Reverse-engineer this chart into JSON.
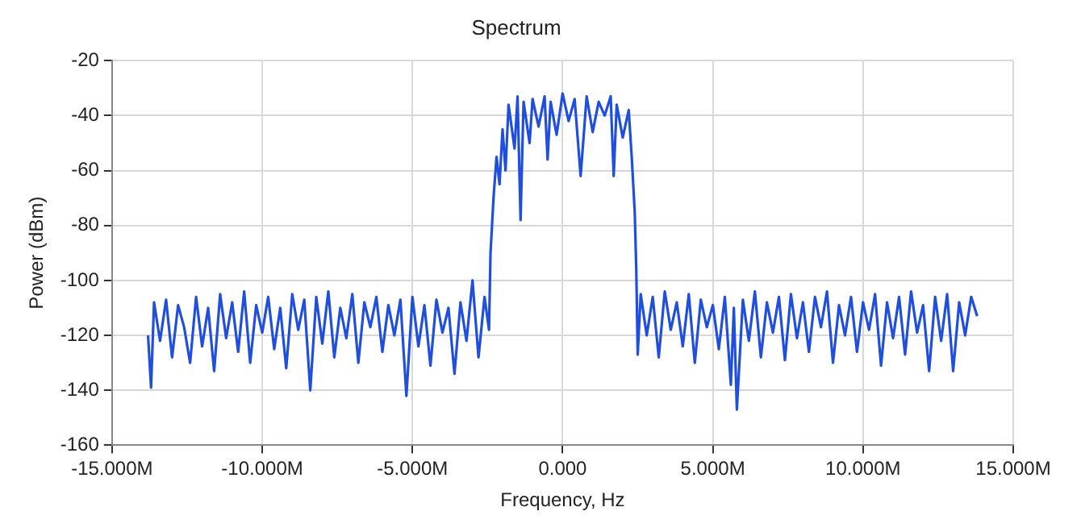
{
  "chart_data": {
    "type": "line",
    "title": "Spectrum",
    "xlabel": "Frequency, Hz",
    "ylabel": "Power (dBm)",
    "xlim": [
      -15000000,
      15000000
    ],
    "xticks": [
      {
        "value": -15000000,
        "label": "-15.000M"
      },
      {
        "value": -10000000,
        "label": "-10.000M"
      },
      {
        "value": -5000000,
        "label": "-5.000M"
      },
      {
        "value": 0,
        "label": "0.000"
      },
      {
        "value": 5000000,
        "label": "5.000M"
      },
      {
        "value": 10000000,
        "label": "10.000M"
      },
      {
        "value": 15000000,
        "label": "15.000M"
      }
    ],
    "ylim": [
      -160,
      -20
    ],
    "yticks": [
      -160,
      -140,
      -120,
      -100,
      -80,
      -60,
      -40,
      -20
    ],
    "grid": true,
    "legend": false,
    "marker": "none",
    "line_style": "solid",
    "series": [
      {
        "color": "#1f4fdc",
        "x": [
          -13800000,
          -13700000,
          -13600000,
          -13400000,
          -13200000,
          -13000000,
          -12800000,
          -12600000,
          -12400000,
          -12200000,
          -12000000,
          -11800000,
          -11600000,
          -11400000,
          -11200000,
          -11000000,
          -10800000,
          -10600000,
          -10400000,
          -10200000,
          -10000000,
          -9800000,
          -9600000,
          -9400000,
          -9200000,
          -9000000,
          -8800000,
          -8600000,
          -8400000,
          -8200000,
          -8000000,
          -7800000,
          -7600000,
          -7400000,
          -7200000,
          -7000000,
          -6800000,
          -6600000,
          -6400000,
          -6200000,
          -6000000,
          -5800000,
          -5600000,
          -5400000,
          -5200000,
          -5000000,
          -4800000,
          -4600000,
          -4400000,
          -4200000,
          -4000000,
          -3800000,
          -3600000,
          -3400000,
          -3200000,
          -3000000,
          -2800000,
          -2600000,
          -2450000,
          -2400000,
          -2300000,
          -2200000,
          -2100000,
          -2000000,
          -1900000,
          -1800000,
          -1600000,
          -1500000,
          -1400000,
          -1300000,
          -1100000,
          -1000000,
          -800000,
          -600000,
          -500000,
          -400000,
          -200000,
          0,
          200000,
          400000,
          600000,
          800000,
          1000000,
          1200000,
          1400000,
          1600000,
          1700000,
          1800000,
          2000000,
          2200000,
          2300000,
          2400000,
          2450000,
          2500000,
          2600000,
          2800000,
          3000000,
          3200000,
          3400000,
          3600000,
          3800000,
          4000000,
          4200000,
          4400000,
          4600000,
          4800000,
          5000000,
          5200000,
          5400000,
          5600000,
          5700000,
          5800000,
          6000000,
          6200000,
          6400000,
          6600000,
          6800000,
          7000000,
          7200000,
          7400000,
          7600000,
          7800000,
          8000000,
          8200000,
          8400000,
          8600000,
          8800000,
          9000000,
          9200000,
          9400000,
          9600000,
          9800000,
          10000000,
          10200000,
          10400000,
          10600000,
          10800000,
          11000000,
          11200000,
          11400000,
          11600000,
          11800000,
          12000000,
          12200000,
          12400000,
          12600000,
          12800000,
          13000000,
          13200000,
          13400000,
          13600000,
          13800000
        ],
        "values": [
          -120,
          -139,
          -108,
          -122,
          -107,
          -128,
          -109,
          -117,
          -130,
          -106,
          -124,
          -110,
          -133,
          -105,
          -121,
          -108,
          -126,
          -104,
          -130,
          -109,
          -119,
          -106,
          -125,
          -110,
          -132,
          -105,
          -118,
          -107,
          -140,
          -106,
          -123,
          -104,
          -128,
          -110,
          -121,
          -105,
          -130,
          -108,
          -117,
          -106,
          -126,
          -109,
          -120,
          -107,
          -142,
          -106,
          -124,
          -109,
          -131,
          -107,
          -119,
          -110,
          -134,
          -108,
          -122,
          -100,
          -128,
          -106,
          -118,
          -90,
          -70,
          -55,
          -65,
          -45,
          -60,
          -36,
          -52,
          -33,
          -78,
          -35,
          -50,
          -34,
          -44,
          -33,
          -56,
          -35,
          -47,
          -32,
          -42,
          -34,
          -62,
          -33,
          -46,
          -35,
          -40,
          -33,
          -62,
          -36,
          -48,
          -38,
          -55,
          -75,
          -95,
          -127,
          -105,
          -120,
          -106,
          -128,
          -104,
          -118,
          -108,
          -124,
          -105,
          -130,
          -107,
          -117,
          -109,
          -125,
          -106,
          -138,
          -110,
          -147,
          -107,
          -122,
          -104,
          -128,
          -108,
          -119,
          -106,
          -129,
          -105,
          -121,
          -108,
          -126,
          -106,
          -117,
          -104,
          -130,
          -109,
          -120,
          -106,
          -126,
          -108,
          -118,
          -105,
          -131,
          -108,
          -121,
          -106,
          -127,
          -104,
          -119,
          -109,
          -133,
          -106,
          -122,
          -105,
          -133,
          -108,
          -120,
          -106,
          -113
        ]
      }
    ]
  }
}
